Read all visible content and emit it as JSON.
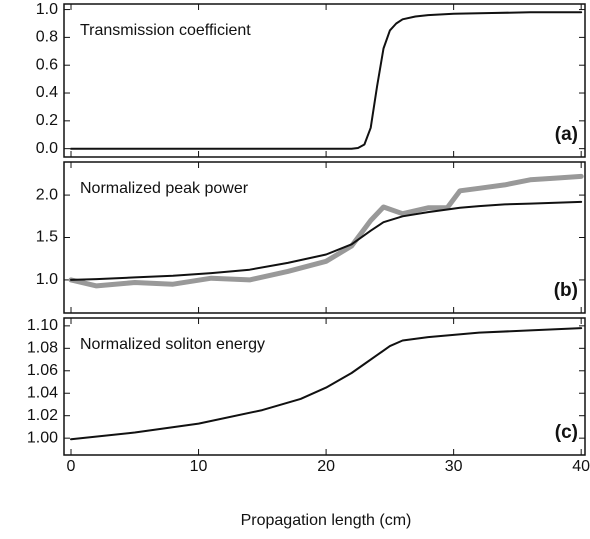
{
  "chart_data": [
    {
      "type": "line",
      "title": "Transmission coefficient",
      "panel_label": "(a)",
      "x": [
        0,
        5,
        10,
        15,
        20,
        22,
        22.5,
        23,
        23.5,
        24,
        24.5,
        25,
        25.5,
        26,
        27,
        28,
        30,
        33,
        36,
        40
      ],
      "series": [
        {
          "color": "#111111",
          "values": [
            0,
            0,
            0,
            0,
            0,
            0,
            0.005,
            0.03,
            0.15,
            0.45,
            0.72,
            0.85,
            0.9,
            0.93,
            0.95,
            0.96,
            0.97,
            0.975,
            0.98,
            0.98
          ]
        }
      ],
      "xlim": [
        -0.55,
        40.3
      ],
      "xticks": [
        0,
        10,
        20,
        30,
        40
      ],
      "ylim": [
        -0.06,
        1.04
      ],
      "yticks": [
        {
          "value": 0,
          "label": "0.0"
        },
        {
          "value": 0.2,
          "label": "0.2"
        },
        {
          "value": 0.4,
          "label": "0.4"
        },
        {
          "value": 0.6,
          "label": "0.6"
        },
        {
          "value": 0.8,
          "label": "0.8"
        },
        {
          "value": 1,
          "label": "1.0"
        }
      ]
    },
    {
      "type": "line",
      "title": "Normalized peak power",
      "panel_label": "(b)",
      "x": [
        0,
        2,
        5,
        8,
        11,
        14,
        17,
        20,
        22,
        23.5,
        24.5,
        26,
        28,
        29.5,
        30.5,
        32,
        34,
        36,
        38,
        40
      ],
      "series": [
        {
          "color": "#999999",
          "width": 5,
          "values": [
            1.0,
            0.93,
            0.97,
            0.95,
            1.02,
            1.0,
            1.1,
            1.22,
            1.4,
            1.7,
            1.86,
            1.78,
            1.85,
            1.85,
            2.05,
            2.08,
            2.12,
            2.18,
            2.2,
            2.22
          ]
        },
        {
          "color": "#111111",
          "width": 2,
          "values": [
            1.0,
            1.01,
            1.03,
            1.05,
            1.08,
            1.12,
            1.2,
            1.3,
            1.42,
            1.58,
            1.68,
            1.75,
            1.8,
            1.83,
            1.85,
            1.87,
            1.89,
            1.9,
            1.91,
            1.92
          ]
        }
      ],
      "xlim": [
        -0.55,
        40.3
      ],
      "xticks": [
        0,
        10,
        20,
        30,
        40
      ],
      "ylim": [
        0.61,
        2.39
      ],
      "yticks": [
        {
          "value": 1,
          "label": "1.0"
        },
        {
          "value": 1.5,
          "label": "1.5"
        },
        {
          "value": 2,
          "label": "2.0"
        }
      ]
    },
    {
      "type": "line",
      "title": "Normalized soliton energy",
      "panel_label": "(c)",
      "xlabel": "Propagation length (cm)",
      "x": [
        0,
        5,
        10,
        15,
        18,
        20,
        22,
        23,
        24,
        25,
        26,
        28,
        32,
        36,
        40
      ],
      "series": [
        {
          "color": "#111111",
          "values": [
            0.999,
            1.005,
            1.013,
            1.025,
            1.035,
            1.045,
            1.058,
            1.066,
            1.074,
            1.082,
            1.087,
            1.09,
            1.094,
            1.096,
            1.098
          ]
        }
      ],
      "xlim": [
        -0.55,
        40.3
      ],
      "xticks": [
        0,
        10,
        20,
        30,
        40
      ],
      "ylim": [
        0.985,
        1.107
      ],
      "yticks": [
        {
          "value": 1,
          "label": "1.00"
        },
        {
          "value": 1.02,
          "label": "1.02"
        },
        {
          "value": 1.04,
          "label": "1.04"
        },
        {
          "value": 1.06,
          "label": "1.06"
        },
        {
          "value": 1.08,
          "label": "1.08"
        },
        {
          "value": 1.1,
          "label": "1.10"
        }
      ]
    }
  ]
}
